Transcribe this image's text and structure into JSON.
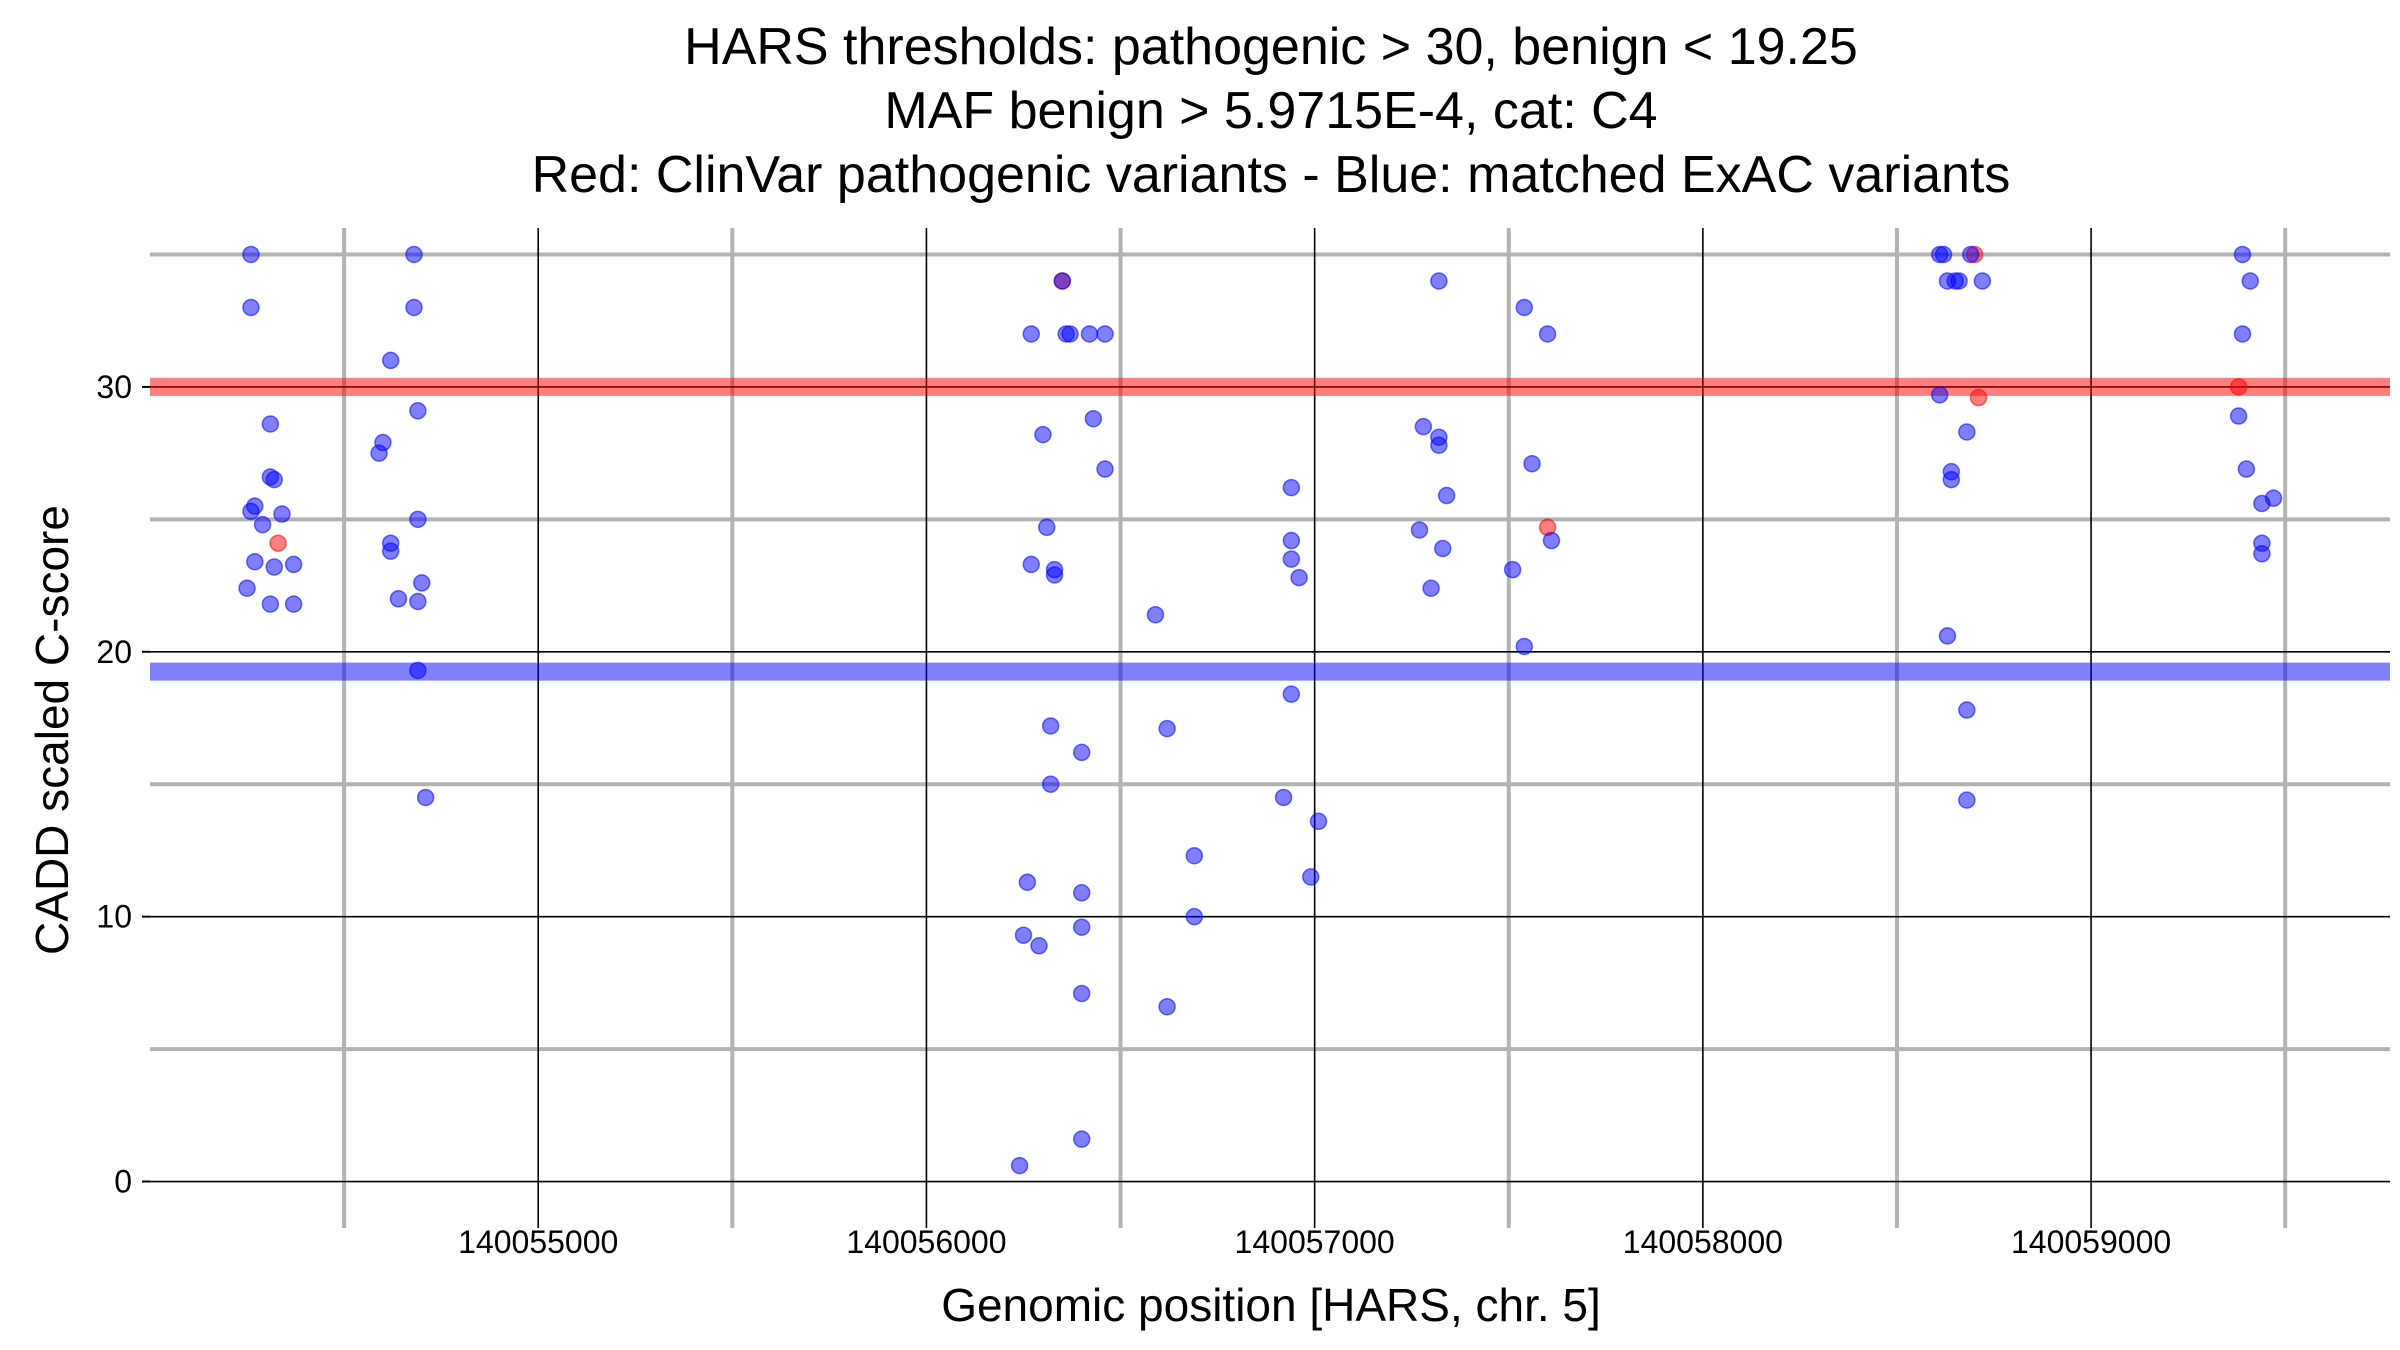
{
  "chart_data": {
    "type": "scatter",
    "title_lines": [
      "HARS thresholds: pathogenic > 30, benign < 19.25",
      "MAF benign > 5.9715E-4, cat: C4",
      "Red: ClinVar pathogenic variants - Blue: matched ExAC variants"
    ],
    "xlabel": "Genomic position [HARS, chr. 5]",
    "ylabel": "CADD scaled C-score",
    "xlim": [
      140054000,
      140059770
    ],
    "ylim": [
      -1,
      36
    ],
    "x_ticks": [
      140055000,
      140056000,
      140057000,
      140058000,
      140059000
    ],
    "x_tick_labels": [
      "140055000",
      "140056000",
      "140057000",
      "140058000",
      "140059000"
    ],
    "x_minor_ticks": [
      140054500,
      140055500,
      140056500,
      140057500,
      140058500,
      140059500
    ],
    "y_ticks": [
      0,
      10,
      20,
      30
    ],
    "y_tick_labels": [
      "0",
      "10",
      "20",
      "30"
    ],
    "y_minor_ticks": [
      5,
      15,
      25,
      35
    ],
    "grid": true,
    "thresholds": [
      {
        "value": 30,
        "color": "#ff0000"
      },
      {
        "value": 19.25,
        "color": "#0000ff"
      }
    ],
    "series": [
      {
        "color": "#ff0000",
        "points": [
          [
            140054330,
            24.1
          ],
          [
            140056350,
            34.0
          ],
          [
            140057600,
            24.7
          ],
          [
            140058700,
            35.0
          ],
          [
            140058710,
            29.6
          ],
          [
            140059380,
            30.0
          ]
        ]
      },
      {
        "color": "#0000ff",
        "points": [
          [
            140054260,
            35.0
          ],
          [
            140054260,
            33.0
          ],
          [
            140054310,
            28.6
          ],
          [
            140054310,
            26.6
          ],
          [
            140054320,
            26.5
          ],
          [
            140054260,
            25.3
          ],
          [
            140054270,
            25.5
          ],
          [
            140054290,
            24.8
          ],
          [
            140054340,
            25.2
          ],
          [
            140054270,
            23.4
          ],
          [
            140054320,
            23.2
          ],
          [
            140054370,
            23.3
          ],
          [
            140054250,
            22.4
          ],
          [
            140054310,
            21.8
          ],
          [
            140054370,
            21.8
          ],
          [
            140054680,
            35.0
          ],
          [
            140054680,
            33.0
          ],
          [
            140054620,
            31.0
          ],
          [
            140054690,
            29.1
          ],
          [
            140054600,
            27.9
          ],
          [
            140054590,
            27.5
          ],
          [
            140054620,
            24.1
          ],
          [
            140054620,
            23.8
          ],
          [
            140054690,
            25.0
          ],
          [
            140054700,
            22.6
          ],
          [
            140054640,
            22.0
          ],
          [
            140054690,
            21.9
          ],
          [
            140054690,
            19.3
          ],
          [
            140054710,
            14.5
          ],
          [
            140056350,
            34.0
          ],
          [
            140056270,
            32.0
          ],
          [
            140056360,
            32.0
          ],
          [
            140056370,
            32.0
          ],
          [
            140056420,
            32.0
          ],
          [
            140056460,
            32.0
          ],
          [
            140056300,
            28.2
          ],
          [
            140056430,
            28.8
          ],
          [
            140056460,
            26.9
          ],
          [
            140056310,
            24.7
          ],
          [
            140056270,
            23.3
          ],
          [
            140056330,
            23.1
          ],
          [
            140056330,
            22.9
          ],
          [
            140056320,
            17.2
          ],
          [
            140056400,
            16.2
          ],
          [
            140056320,
            15.0
          ],
          [
            140056590,
            21.4
          ],
          [
            140056620,
            17.1
          ],
          [
            140056260,
            11.3
          ],
          [
            140056400,
            10.9
          ],
          [
            140056400,
            9.6
          ],
          [
            140056250,
            9.3
          ],
          [
            140056290,
            8.9
          ],
          [
            140056400,
            7.1
          ],
          [
            140056620,
            6.6
          ],
          [
            140056690,
            12.3
          ],
          [
            140056690,
            10.0
          ],
          [
            140056240,
            0.6
          ],
          [
            140056400,
            1.6
          ],
          [
            140056940,
            26.2
          ],
          [
            140056940,
            24.2
          ],
          [
            140056940,
            23.5
          ],
          [
            140056960,
            22.8
          ],
          [
            140056940,
            18.4
          ],
          [
            140056920,
            14.5
          ],
          [
            140057010,
            13.6
          ],
          [
            140056990,
            11.5
          ],
          [
            140057320,
            34.0
          ],
          [
            140057280,
            28.5
          ],
          [
            140057320,
            28.1
          ],
          [
            140057320,
            27.8
          ],
          [
            140057340,
            25.9
          ],
          [
            140057270,
            24.6
          ],
          [
            140057330,
            23.9
          ],
          [
            140057300,
            22.4
          ],
          [
            140057540,
            33.0
          ],
          [
            140057600,
            32.0
          ],
          [
            140057560,
            27.1
          ],
          [
            140057610,
            24.2
          ],
          [
            140057510,
            23.1
          ],
          [
            140057540,
            20.2
          ],
          [
            140058610,
            35.0
          ],
          [
            140058620,
            35.0
          ],
          [
            140058690,
            35.0
          ],
          [
            140058630,
            34.0
          ],
          [
            140058650,
            34.0
          ],
          [
            140058660,
            34.0
          ],
          [
            140058720,
            34.0
          ],
          [
            140058610,
            29.7
          ],
          [
            140058680,
            28.3
          ],
          [
            140058640,
            26.8
          ],
          [
            140058640,
            26.5
          ],
          [
            140058630,
            20.6
          ],
          [
            140058680,
            17.8
          ],
          [
            140058680,
            14.4
          ],
          [
            140059390,
            35.0
          ],
          [
            140059410,
            34.0
          ],
          [
            140059390,
            32.0
          ],
          [
            140059380,
            28.9
          ],
          [
            140059400,
            26.9
          ],
          [
            140059470,
            25.8
          ],
          [
            140059440,
            25.6
          ],
          [
            140059440,
            24.1
          ],
          [
            140059440,
            23.7
          ]
        ]
      }
    ]
  }
}
